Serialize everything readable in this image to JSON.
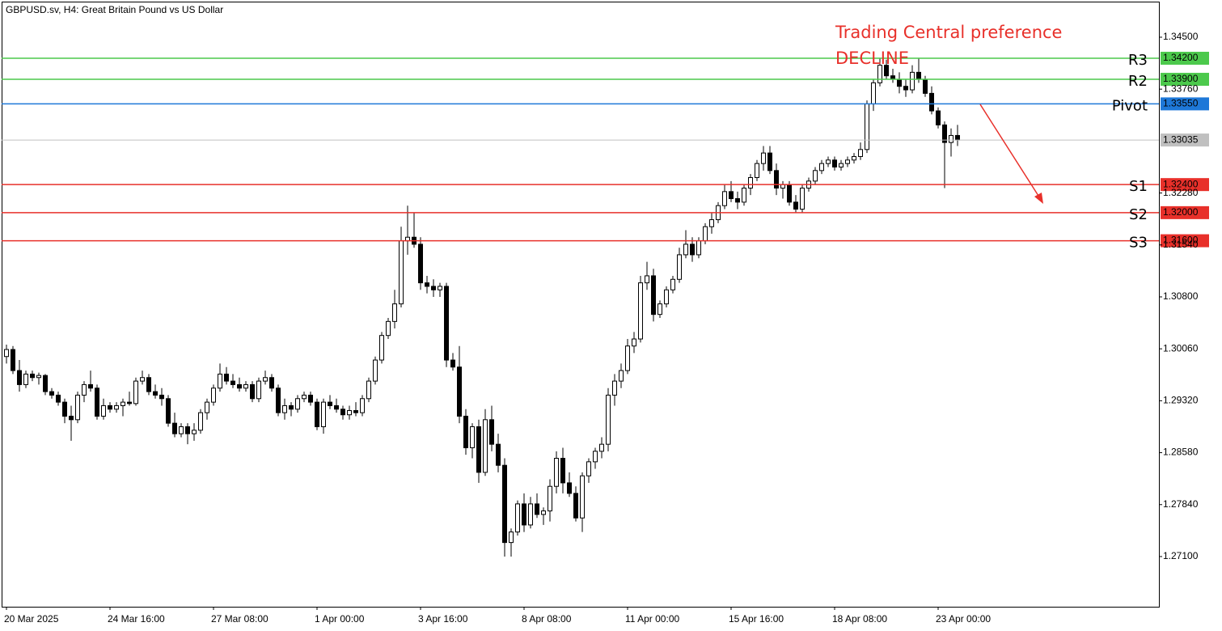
{
  "chart_data": {
    "type": "candlestick",
    "title": "GBPUSD.sv, H4:  Great Britain Pound vs US Dollar",
    "annotations": [
      "Trading Central preference",
      "DECLINE"
    ],
    "categories": [
      "20 Mar 2025",
      null,
      null,
      null,
      null,
      null,
      null,
      null,
      null,
      null,
      null,
      null,
      null,
      null,
      null,
      null,
      "24 Mar 16:00",
      null,
      null,
      null,
      null,
      null,
      null,
      null,
      null,
      null,
      null,
      null,
      null,
      null,
      null,
      null,
      "27 Mar 08:00",
      null,
      null,
      null,
      null,
      null,
      null,
      null,
      null,
      null,
      null,
      null,
      null,
      null,
      null,
      null,
      "1 Apr 00:00",
      null,
      null,
      null,
      null,
      null,
      null,
      null,
      null,
      null,
      null,
      null,
      null,
      null,
      null,
      null,
      "3 Apr 16:00",
      null,
      null,
      null,
      null,
      null,
      null,
      null,
      null,
      null,
      null,
      null,
      null,
      null,
      null,
      null,
      "8 Apr 08:00",
      null,
      null,
      null,
      null,
      null,
      null,
      null,
      null,
      null,
      null,
      null,
      null,
      null,
      null,
      null,
      "11 Apr 00:00",
      null,
      null,
      null,
      null,
      null,
      null,
      null,
      null,
      null,
      null,
      null,
      null,
      null,
      null,
      null,
      "15 Apr 16:00",
      null,
      null,
      null,
      null,
      null,
      null,
      null,
      null,
      null,
      null,
      null,
      null,
      null,
      null,
      null,
      "18 Apr 08:00",
      null,
      null,
      null,
      null,
      null,
      null,
      null,
      null,
      null,
      null,
      null,
      null,
      null,
      null,
      null,
      "23 Apr 00:00",
      null,
      null,
      null
    ],
    "open": [
      1.2995,
      1.3005,
      1.2975,
      1.2955,
      1.297,
      1.2965,
      1.2968,
      1.2945,
      1.294,
      1.293,
      1.291,
      1.2905,
      1.294,
      1.2955,
      1.295,
      1.291,
      1.2925,
      1.292,
      1.2925,
      1.293,
      1.2928,
      1.296,
      1.2965,
      1.2945,
      1.294,
      1.2935,
      1.29,
      1.2885,
      1.2895,
      1.2885,
      1.289,
      1.2915,
      1.293,
      1.295,
      1.297,
      1.296,
      1.2955,
      1.295,
      1.2955,
      1.2935,
      1.296,
      1.2965,
      1.295,
      1.2915,
      1.2925,
      1.292,
      1.2935,
      1.294,
      1.293,
      1.2895,
      1.293,
      1.2925,
      1.292,
      1.2912,
      1.2918,
      1.2915,
      1.2935,
      1.296,
      1.299,
      1.3025,
      1.3045,
      1.307,
      1.316,
      1.3165,
      1.3155,
      1.31,
      1.3095,
      1.309,
      1.3095,
      1.299,
      1.298,
      1.291,
      1.2865,
      1.2895,
      1.283,
      1.2905,
      1.287,
      1.284,
      1.273,
      1.2745,
      1.2785,
      1.2755,
      1.2785,
      1.277,
      1.2775,
      1.281,
      1.285,
      1.2815,
      1.28,
      1.2765,
      1.2825,
      1.2845,
      1.286,
      1.287,
      1.294,
      1.296,
      1.2975,
      1.301,
      1.302,
      1.31,
      1.311,
      1.3055,
      1.307,
      1.309,
      1.3105,
      1.314,
      1.3155,
      1.314,
      1.316,
      1.318,
      1.319,
      1.321,
      1.323,
      1.322,
      1.3215,
      1.3235,
      1.325,
      1.327,
      1.3285,
      1.326,
      1.3235,
      1.324,
      1.3215,
      1.3205,
      1.3235,
      1.3245,
      1.326,
      1.327,
      1.3275,
      1.3265,
      1.327,
      1.3275,
      1.328,
      1.329,
      1.3355,
      1.3385,
      1.341,
      1.3395,
      1.339,
      1.338,
      1.3375,
      1.34,
      1.339,
      1.337,
      1.3345,
      1.3325,
      1.33,
      1.331
    ],
    "high": [
      1.3012,
      1.301,
      1.299,
      1.2975,
      1.2975,
      1.2972,
      1.297,
      1.295,
      1.2945,
      1.2935,
      1.2925,
      1.2945,
      1.296,
      1.2975,
      1.2955,
      1.2935,
      1.293,
      1.293,
      1.2935,
      1.2945,
      1.2965,
      1.2975,
      1.297,
      1.2955,
      1.295,
      1.294,
      1.2915,
      1.29,
      1.29,
      1.29,
      1.292,
      1.2935,
      1.2955,
      1.2985,
      1.298,
      1.297,
      1.2965,
      1.296,
      1.296,
      1.2965,
      1.2975,
      1.297,
      1.2955,
      1.2935,
      1.293,
      1.294,
      1.2945,
      1.2945,
      1.2935,
      1.2935,
      1.294,
      1.2935,
      1.2925,
      1.2925,
      1.293,
      1.294,
      1.2965,
      1.2995,
      1.303,
      1.305,
      1.309,
      1.318,
      1.321,
      1.32,
      1.3165,
      1.311,
      1.3105,
      1.31,
      1.31,
      1.3,
      1.301,
      1.292,
      1.29,
      1.2905,
      1.292,
      1.2925,
      1.2885,
      1.285,
      1.275,
      1.279,
      1.28,
      1.2795,
      1.28,
      1.278,
      1.282,
      1.286,
      1.2865,
      1.283,
      1.281,
      1.283,
      1.285,
      1.2865,
      1.288,
      1.295,
      1.297,
      1.2985,
      1.302,
      1.303,
      1.311,
      1.313,
      1.312,
      1.3075,
      1.3095,
      1.311,
      1.315,
      1.3175,
      1.3165,
      1.3165,
      1.3185,
      1.32,
      1.3215,
      1.324,
      1.3245,
      1.323,
      1.324,
      1.3255,
      1.3275,
      1.3295,
      1.3295,
      1.327,
      1.3245,
      1.3245,
      1.3225,
      1.324,
      1.325,
      1.3265,
      1.3275,
      1.328,
      1.328,
      1.3275,
      1.328,
      1.3285,
      1.33,
      1.336,
      1.339,
      1.342,
      1.3418,
      1.3405,
      1.34,
      1.339,
      1.341,
      1.342,
      1.3395,
      1.338,
      1.335,
      1.333,
      1.332,
      1.3325
    ],
    "low": [
      1.2985,
      1.297,
      1.2945,
      1.295,
      1.296,
      1.2955,
      1.294,
      1.2935,
      1.2925,
      1.29,
      1.2875,
      1.29,
      1.293,
      1.2945,
      1.2905,
      1.2905,
      1.2915,
      1.2915,
      1.291,
      1.2925,
      1.2925,
      1.2955,
      1.294,
      1.2935,
      1.2925,
      1.2895,
      1.288,
      1.288,
      1.287,
      1.2875,
      1.2885,
      1.2905,
      1.2925,
      1.2945,
      1.2955,
      1.295,
      1.2945,
      1.2945,
      1.293,
      1.293,
      1.2955,
      1.2945,
      1.291,
      1.2905,
      1.291,
      1.2915,
      1.293,
      1.2925,
      1.289,
      1.2885,
      1.292,
      1.2915,
      1.2905,
      1.2905,
      1.291,
      1.291,
      1.293,
      1.2955,
      1.2985,
      1.302,
      1.3035,
      1.3065,
      1.314,
      1.315,
      1.309,
      1.3085,
      1.308,
      1.308,
      1.298,
      1.2975,
      1.29,
      1.2855,
      1.285,
      1.2815,
      1.2825,
      1.286,
      1.283,
      1.271,
      1.271,
      1.274,
      1.2745,
      1.275,
      1.2765,
      1.2755,
      1.276,
      1.28,
      1.28,
      1.2795,
      1.276,
      1.2745,
      1.2815,
      1.2835,
      1.285,
      1.286,
      1.2925,
      1.295,
      1.297,
      1.3,
      1.3015,
      1.309,
      1.3045,
      1.305,
      1.3065,
      1.3085,
      1.31,
      1.3135,
      1.313,
      1.3135,
      1.3155,
      1.317,
      1.3185,
      1.3205,
      1.3215,
      1.3205,
      1.321,
      1.3225,
      1.3245,
      1.326,
      1.3255,
      1.3225,
      1.322,
      1.321,
      1.32,
      1.32,
      1.323,
      1.324,
      1.3255,
      1.3265,
      1.326,
      1.326,
      1.3265,
      1.327,
      1.3275,
      1.3285,
      1.3345,
      1.338,
      1.339,
      1.3385,
      1.337,
      1.3365,
      1.337,
      1.3385,
      1.3365,
      1.334,
      1.332,
      1.3235,
      1.328,
      1.3295
    ],
    "close": [
      1.3005,
      1.2975,
      1.2955,
      1.297,
      1.2965,
      1.2968,
      1.2945,
      1.294,
      1.293,
      1.291,
      1.2905,
      1.294,
      1.2955,
      1.295,
      1.291,
      1.2925,
      1.292,
      1.2925,
      1.293,
      1.2928,
      1.296,
      1.2965,
      1.2945,
      1.294,
      1.2935,
      1.29,
      1.2885,
      1.2895,
      1.2885,
      1.289,
      1.2915,
      1.293,
      1.295,
      1.297,
      1.296,
      1.2955,
      1.295,
      1.2955,
      1.2935,
      1.296,
      1.2965,
      1.295,
      1.2915,
      1.2925,
      1.292,
      1.2935,
      1.294,
      1.293,
      1.2895,
      1.293,
      1.2925,
      1.292,
      1.2912,
      1.2918,
      1.2915,
      1.2935,
      1.296,
      1.299,
      1.3025,
      1.3045,
      1.307,
      1.316,
      1.3165,
      1.3155,
      1.31,
      1.3095,
      1.309,
      1.3095,
      1.299,
      1.298,
      1.291,
      1.2865,
      1.2895,
      1.283,
      1.2905,
      1.287,
      1.284,
      1.273,
      1.2745,
      1.2785,
      1.2755,
      1.2785,
      1.277,
      1.2775,
      1.281,
      1.285,
      1.2815,
      1.28,
      1.2765,
      1.2825,
      1.2845,
      1.286,
      1.287,
      1.294,
      1.296,
      1.2975,
      1.301,
      1.302,
      1.31,
      1.311,
      1.3055,
      1.307,
      1.309,
      1.3105,
      1.314,
      1.3155,
      1.314,
      1.316,
      1.318,
      1.319,
      1.321,
      1.323,
      1.322,
      1.3215,
      1.3235,
      1.325,
      1.327,
      1.3285,
      1.326,
      1.3235,
      1.324,
      1.3215,
      1.3205,
      1.3235,
      1.3245,
      1.326,
      1.327,
      1.3275,
      1.3265,
      1.327,
      1.3275,
      1.328,
      1.329,
      1.3355,
      1.3385,
      1.341,
      1.3395,
      1.339,
      1.338,
      1.3375,
      1.34,
      1.339,
      1.337,
      1.3345,
      1.3325,
      1.33,
      1.331,
      1.33035
    ],
    "up_color": "#ffffff",
    "down_color": "#000000",
    "ylim": [
      1.26385,
      1.35007
    ],
    "yticks": [
      {
        "value": 1.345,
        "label": "1.34500"
      },
      {
        "value": 1.3376,
        "label": "1.33760"
      },
      {
        "value": 1.3228,
        "label": "1.32280"
      },
      {
        "value": 1.3154,
        "label": "1.31540"
      },
      {
        "value": 1.308,
        "label": "1.30800"
      },
      {
        "value": 1.3006,
        "label": "1.30060"
      },
      {
        "value": 1.2932,
        "label": "1.29320"
      },
      {
        "value": 1.2858,
        "label": "1.28580"
      },
      {
        "value": 1.2784,
        "label": "1.27840"
      },
      {
        "value": 1.271,
        "label": "1.27100"
      }
    ],
    "grid": false,
    "last_price": {
      "value": 1.33035,
      "label": "1.33035",
      "color": "#c0c0c0"
    },
    "levels": [
      {
        "name": "R3",
        "value": 1.342,
        "value_label": "1.34200",
        "color": "#4cc94c"
      },
      {
        "name": "R2",
        "value": 1.339,
        "value_label": "1.33900",
        "color": "#4cc94c"
      },
      {
        "name": "Pivot",
        "value": 1.3355,
        "value_label": "1.33550",
        "color": "#1e78d8"
      },
      {
        "name": "S1",
        "value": 1.324,
        "value_label": "1.32400",
        "color": "#e8302a"
      },
      {
        "name": "S2",
        "value": 1.32,
        "value_label": "1.32000",
        "color": "#e8302a"
      },
      {
        "name": "S3",
        "value": 1.316,
        "value_label": "1.31600",
        "color": "#e8302a"
      }
    ]
  }
}
